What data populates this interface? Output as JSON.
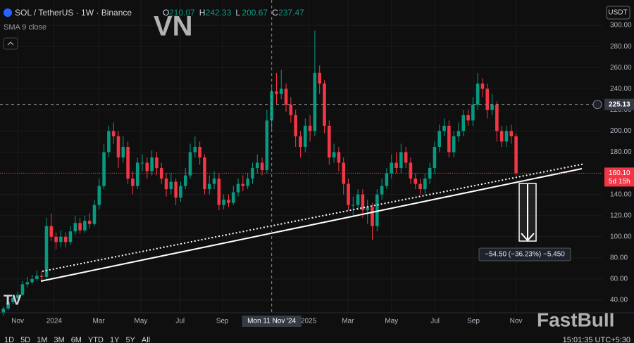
{
  "chart_data": {
    "type": "candlestick",
    "symbol": "SOL / TetherUS · 1W · Binance",
    "ohlc_labels": [
      "O",
      "H",
      "L",
      "C"
    ],
    "legend_index": 56,
    "indicator": "SMA 9 close",
    "currency": "USDT",
    "watermark": "VN",
    "brand": "FastBull",
    "up_color": "#089981",
    "down_color": "#f23645",
    "open": [
      28,
      32,
      38,
      42,
      45,
      55,
      57,
      60,
      63,
      62,
      110,
      100,
      95,
      100,
      95,
      105,
      113,
      106,
      115,
      112,
      130,
      148,
      180,
      200,
      195,
      175,
      185,
      155,
      148,
      170,
      170,
      162,
      175,
      165,
      155,
      145,
      152,
      137,
      148,
      158,
      180,
      185,
      175,
      145,
      150,
      155,
      130,
      135,
      132,
      142,
      150,
      148,
      155,
      165,
      170,
      163,
      210.07,
      237.47,
      235,
      240,
      225,
      215,
      195,
      185,
      205,
      200,
      255,
      245,
      205,
      175,
      180,
      170,
      150,
      130,
      130,
      140,
      125,
      128,
      110,
      140,
      148,
      160,
      170,
      165,
      180,
      170,
      155,
      150,
      145,
      155,
      165,
      185,
      200,
      205,
      180,
      195,
      200,
      215,
      210,
      225,
      245,
      240,
      220,
      225,
      200,
      190,
      200,
      195
    ],
    "high": [
      34,
      41,
      45,
      48,
      58,
      62,
      64,
      68,
      67,
      118,
      122,
      104,
      106,
      104,
      110,
      120,
      118,
      120,
      122,
      135,
      155,
      188,
      205,
      208,
      200,
      195,
      190,
      162,
      175,
      178,
      175,
      182,
      180,
      170,
      160,
      160,
      155,
      152,
      165,
      188,
      195,
      190,
      178,
      158,
      162,
      160,
      140,
      140,
      148,
      155,
      158,
      160,
      170,
      178,
      175,
      220,
      242.33,
      255,
      258,
      245,
      232,
      220,
      200,
      212,
      215,
      295,
      262,
      248,
      210,
      188,
      185,
      175,
      155,
      138,
      145,
      145,
      135,
      132,
      145,
      155,
      165,
      178,
      180,
      188,
      185,
      175,
      160,
      155,
      160,
      170,
      190,
      206,
      212,
      210,
      200,
      208,
      220,
      220,
      232,
      255,
      250,
      245,
      235,
      228,
      205,
      205,
      206,
      198
    ],
    "low": [
      25,
      30,
      36,
      40,
      44,
      52,
      55,
      58,
      58,
      60,
      96,
      88,
      90,
      90,
      92,
      102,
      103,
      104,
      108,
      110,
      126,
      145,
      175,
      188,
      165,
      170,
      150,
      140,
      145,
      162,
      155,
      158,
      158,
      150,
      138,
      140,
      130,
      133,
      145,
      155,
      175,
      168,
      140,
      140,
      145,
      125,
      126,
      128,
      130,
      138,
      143,
      145,
      150,
      160,
      158,
      160,
      200.67,
      225,
      230,
      218,
      208,
      185,
      175,
      180,
      190,
      195,
      235,
      198,
      168,
      170,
      162,
      140,
      125,
      120,
      125,
      118,
      112,
      97,
      105,
      135,
      145,
      155,
      160,
      160,
      165,
      150,
      145,
      140,
      140,
      150,
      160,
      180,
      195,
      175,
      175,
      190,
      195,
      205,
      205,
      220,
      232,
      212,
      215,
      190,
      185,
      185,
      188,
      158
    ],
    "close": [
      32,
      38,
      42,
      45,
      55,
      57,
      60,
      63,
      62,
      110,
      100,
      95,
      100,
      95,
      105,
      113,
      106,
      115,
      112,
      130,
      148,
      180,
      200,
      195,
      175,
      185,
      155,
      148,
      170,
      170,
      162,
      175,
      165,
      155,
      145,
      152,
      137,
      148,
      158,
      180,
      185,
      175,
      145,
      150,
      155,
      130,
      135,
      132,
      142,
      150,
      148,
      155,
      165,
      170,
      163,
      210,
      237.47,
      235,
      240,
      225,
      215,
      195,
      185,
      205,
      200,
      255,
      245,
      205,
      175,
      180,
      170,
      150,
      130,
      130,
      140,
      125,
      128,
      110,
      140,
      148,
      160,
      170,
      165,
      180,
      170,
      155,
      150,
      145,
      155,
      165,
      185,
      200,
      205,
      180,
      195,
      200,
      215,
      210,
      225,
      245,
      240,
      220,
      225,
      200,
      190,
      200,
      195,
      160.1
    ],
    "xlim": [
      -0.7,
      125
    ],
    "xticks": [
      {
        "value": 3,
        "label": "Nov"
      },
      {
        "value": 10.6,
        "label": "2024"
      },
      {
        "value": 19.9,
        "label": "Mar"
      },
      {
        "value": 28.7,
        "label": "May"
      },
      {
        "value": 36.9,
        "label": "Jul"
      },
      {
        "value": 45.7,
        "label": "Sep"
      },
      {
        "value": 63.7,
        "label": "2025"
      },
      {
        "value": 71.9,
        "label": "Mar"
      },
      {
        "value": 81,
        "label": "May"
      },
      {
        "value": 90.1,
        "label": "Jul"
      },
      {
        "value": 98.1,
        "label": "Sep"
      },
      {
        "value": 107,
        "label": "Nov"
      }
    ],
    "ylim": [
      28,
      324
    ],
    "yticks": [
      {
        "value": 40,
        "label": "40.00"
      },
      {
        "value": 60,
        "label": "60.00"
      },
      {
        "value": 80,
        "label": "80.00"
      },
      {
        "value": 100,
        "label": "100.00"
      },
      {
        "value": 120,
        "label": "120.00"
      },
      {
        "value": 140,
        "label": "140.00"
      },
      {
        "value": 160,
        "label": "160.00"
      },
      {
        "value": 180,
        "label": "180.00"
      },
      {
        "value": 200,
        "label": "200.00"
      },
      {
        "value": 220,
        "label": "220.00"
      },
      {
        "value": 240,
        "label": "240.00"
      },
      {
        "value": 260,
        "label": "260.00"
      },
      {
        "value": 280,
        "label": "280.00"
      },
      {
        "value": 300,
        "label": "300.00"
      }
    ],
    "grid": true,
    "crosshair": {
      "x": 56,
      "x_label": "Mon 11 Nov '24",
      "y": {
        "value": 225.13,
        "label": "225.13"
      }
    },
    "last_price": {
      "value": 160.1,
      "label": "160.10"
    },
    "countdown": "5d 15h",
    "measure_label": "−54.50 (−36.23%) −5,450",
    "timeframes": [
      "1D",
      "5D",
      "1M",
      "3M",
      "6M",
      "YTD",
      "1Y",
      "5Y",
      "All"
    ],
    "clock": "15:01:35 UTC+5:30"
  }
}
